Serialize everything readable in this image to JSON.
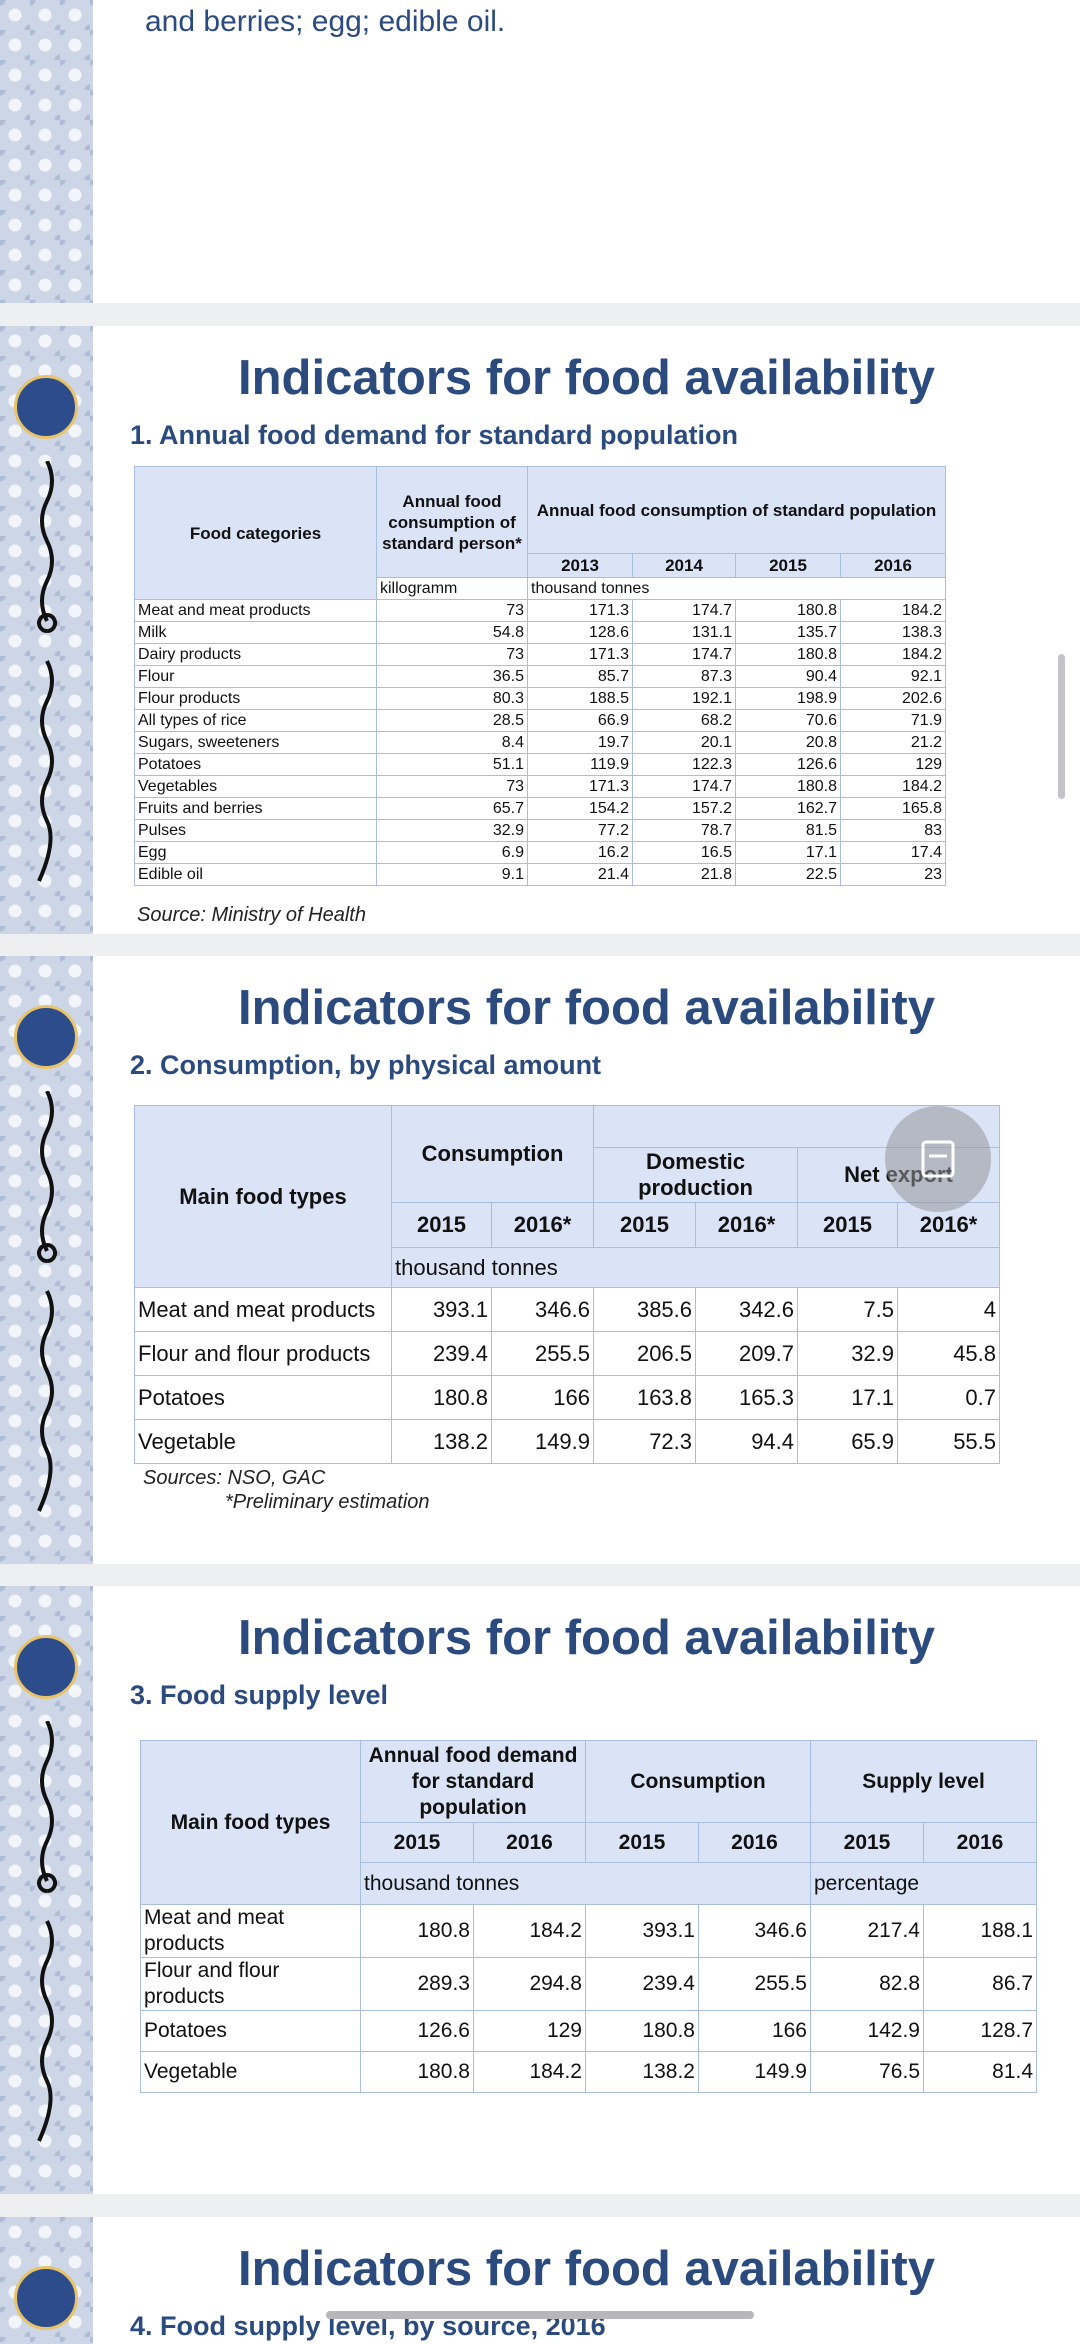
{
  "top_text": "and berries; egg; edible oil.",
  "slides": [
    {
      "title": "Indicators for food availability",
      "subtitle": "1. Annual food demand for standard population",
      "table": {
        "head": {
          "category": "Food categories",
          "per_person": "Annual food consumption of standard person*",
          "population": "Annual food consumption of standard population",
          "years": [
            "2013",
            "2014",
            "2015",
            "2016"
          ],
          "unit_person": "killogramm",
          "unit_population": "thousand tonnes"
        },
        "rows": [
          [
            "Meat and meat products",
            73,
            171.3,
            174.7,
            180.8,
            184.2
          ],
          [
            "Milk",
            54.8,
            128.6,
            131.1,
            135.7,
            138.3
          ],
          [
            "Dairy products",
            73,
            171.3,
            174.7,
            180.8,
            184.2
          ],
          [
            "Flour",
            36.5,
            85.7,
            87.3,
            90.4,
            92.1
          ],
          [
            "Flour products",
            80.3,
            188.5,
            192.1,
            198.9,
            202.6
          ],
          [
            "All types of rice",
            28.5,
            66.9,
            68.2,
            70.6,
            71.9
          ],
          [
            "Sugars, sweeteners",
            8.4,
            19.7,
            20.1,
            20.8,
            21.2
          ],
          [
            "Potatoes",
            51.1,
            119.9,
            122.3,
            126.6,
            129
          ],
          [
            "Vegetables",
            73,
            171.3,
            174.7,
            180.8,
            184.2
          ],
          [
            "Fruits and berries",
            65.7,
            154.2,
            157.2,
            162.7,
            165.8
          ],
          [
            "Pulses",
            32.9,
            77.2,
            78.7,
            81.5,
            83
          ],
          [
            "Egg",
            6.9,
            16.2,
            16.5,
            17.1,
            17.4
          ],
          [
            "Edible oil",
            9.1,
            21.4,
            21.8,
            22.5,
            23
          ]
        ]
      },
      "source": "Source: Ministry of Health"
    },
    {
      "title": "Indicators for food availability",
      "subtitle": "2. Consumption, by physical amount",
      "table": {
        "head": {
          "category": "Main food types",
          "consumption": "Consumption",
          "domestic": "Domestic production",
          "net_export": "Net export",
          "years": [
            "2015",
            "2016*",
            "2015",
            "2016*",
            "2015",
            "2016*"
          ],
          "unit": "thousand tonnes"
        },
        "rows": [
          [
            "Meat and meat products",
            393.1,
            346.6,
            385.6,
            342.6,
            7.5,
            4
          ],
          [
            "Flour and flour products",
            239.4,
            255.5,
            206.5,
            209.7,
            32.9,
            45.8
          ],
          [
            "Potatoes",
            180.8,
            166,
            163.8,
            165.3,
            17.1,
            0.7
          ],
          [
            "Vegetable",
            138.2,
            149.9,
            72.3,
            94.4,
            65.9,
            55.5
          ]
        ]
      },
      "sources": "Sources: NSO, GAC",
      "note": "*Preliminary estimation"
    },
    {
      "title": "Indicators for food availability",
      "subtitle": "3. Food supply level",
      "table": {
        "head": {
          "category": "Main food types",
          "demand": "Annual food demand for standard population",
          "consumption": "Consumption",
          "supply": "Supply level",
          "years": [
            "2015",
            "2016",
            "2015",
            "2016",
            "2015",
            "2016"
          ],
          "unit_amount": "thousand tonnes",
          "unit_level": "percentage"
        },
        "rows": [
          [
            "Meat and meat products",
            180.8,
            184.2,
            393.1,
            346.6,
            217.4,
            188.1
          ],
          [
            "Flour and flour products",
            289.3,
            294.8,
            239.4,
            255.5,
            82.8,
            86.7
          ],
          [
            "Potatoes",
            126.6,
            129,
            180.8,
            166,
            142.9,
            128.7
          ],
          [
            "Vegetable",
            180.8,
            184.2,
            138.2,
            149.9,
            76.5,
            81.4
          ]
        ]
      }
    },
    {
      "title": "Indicators for food availability",
      "subtitle": "4. Food supply level, by source, 2016"
    }
  ]
}
